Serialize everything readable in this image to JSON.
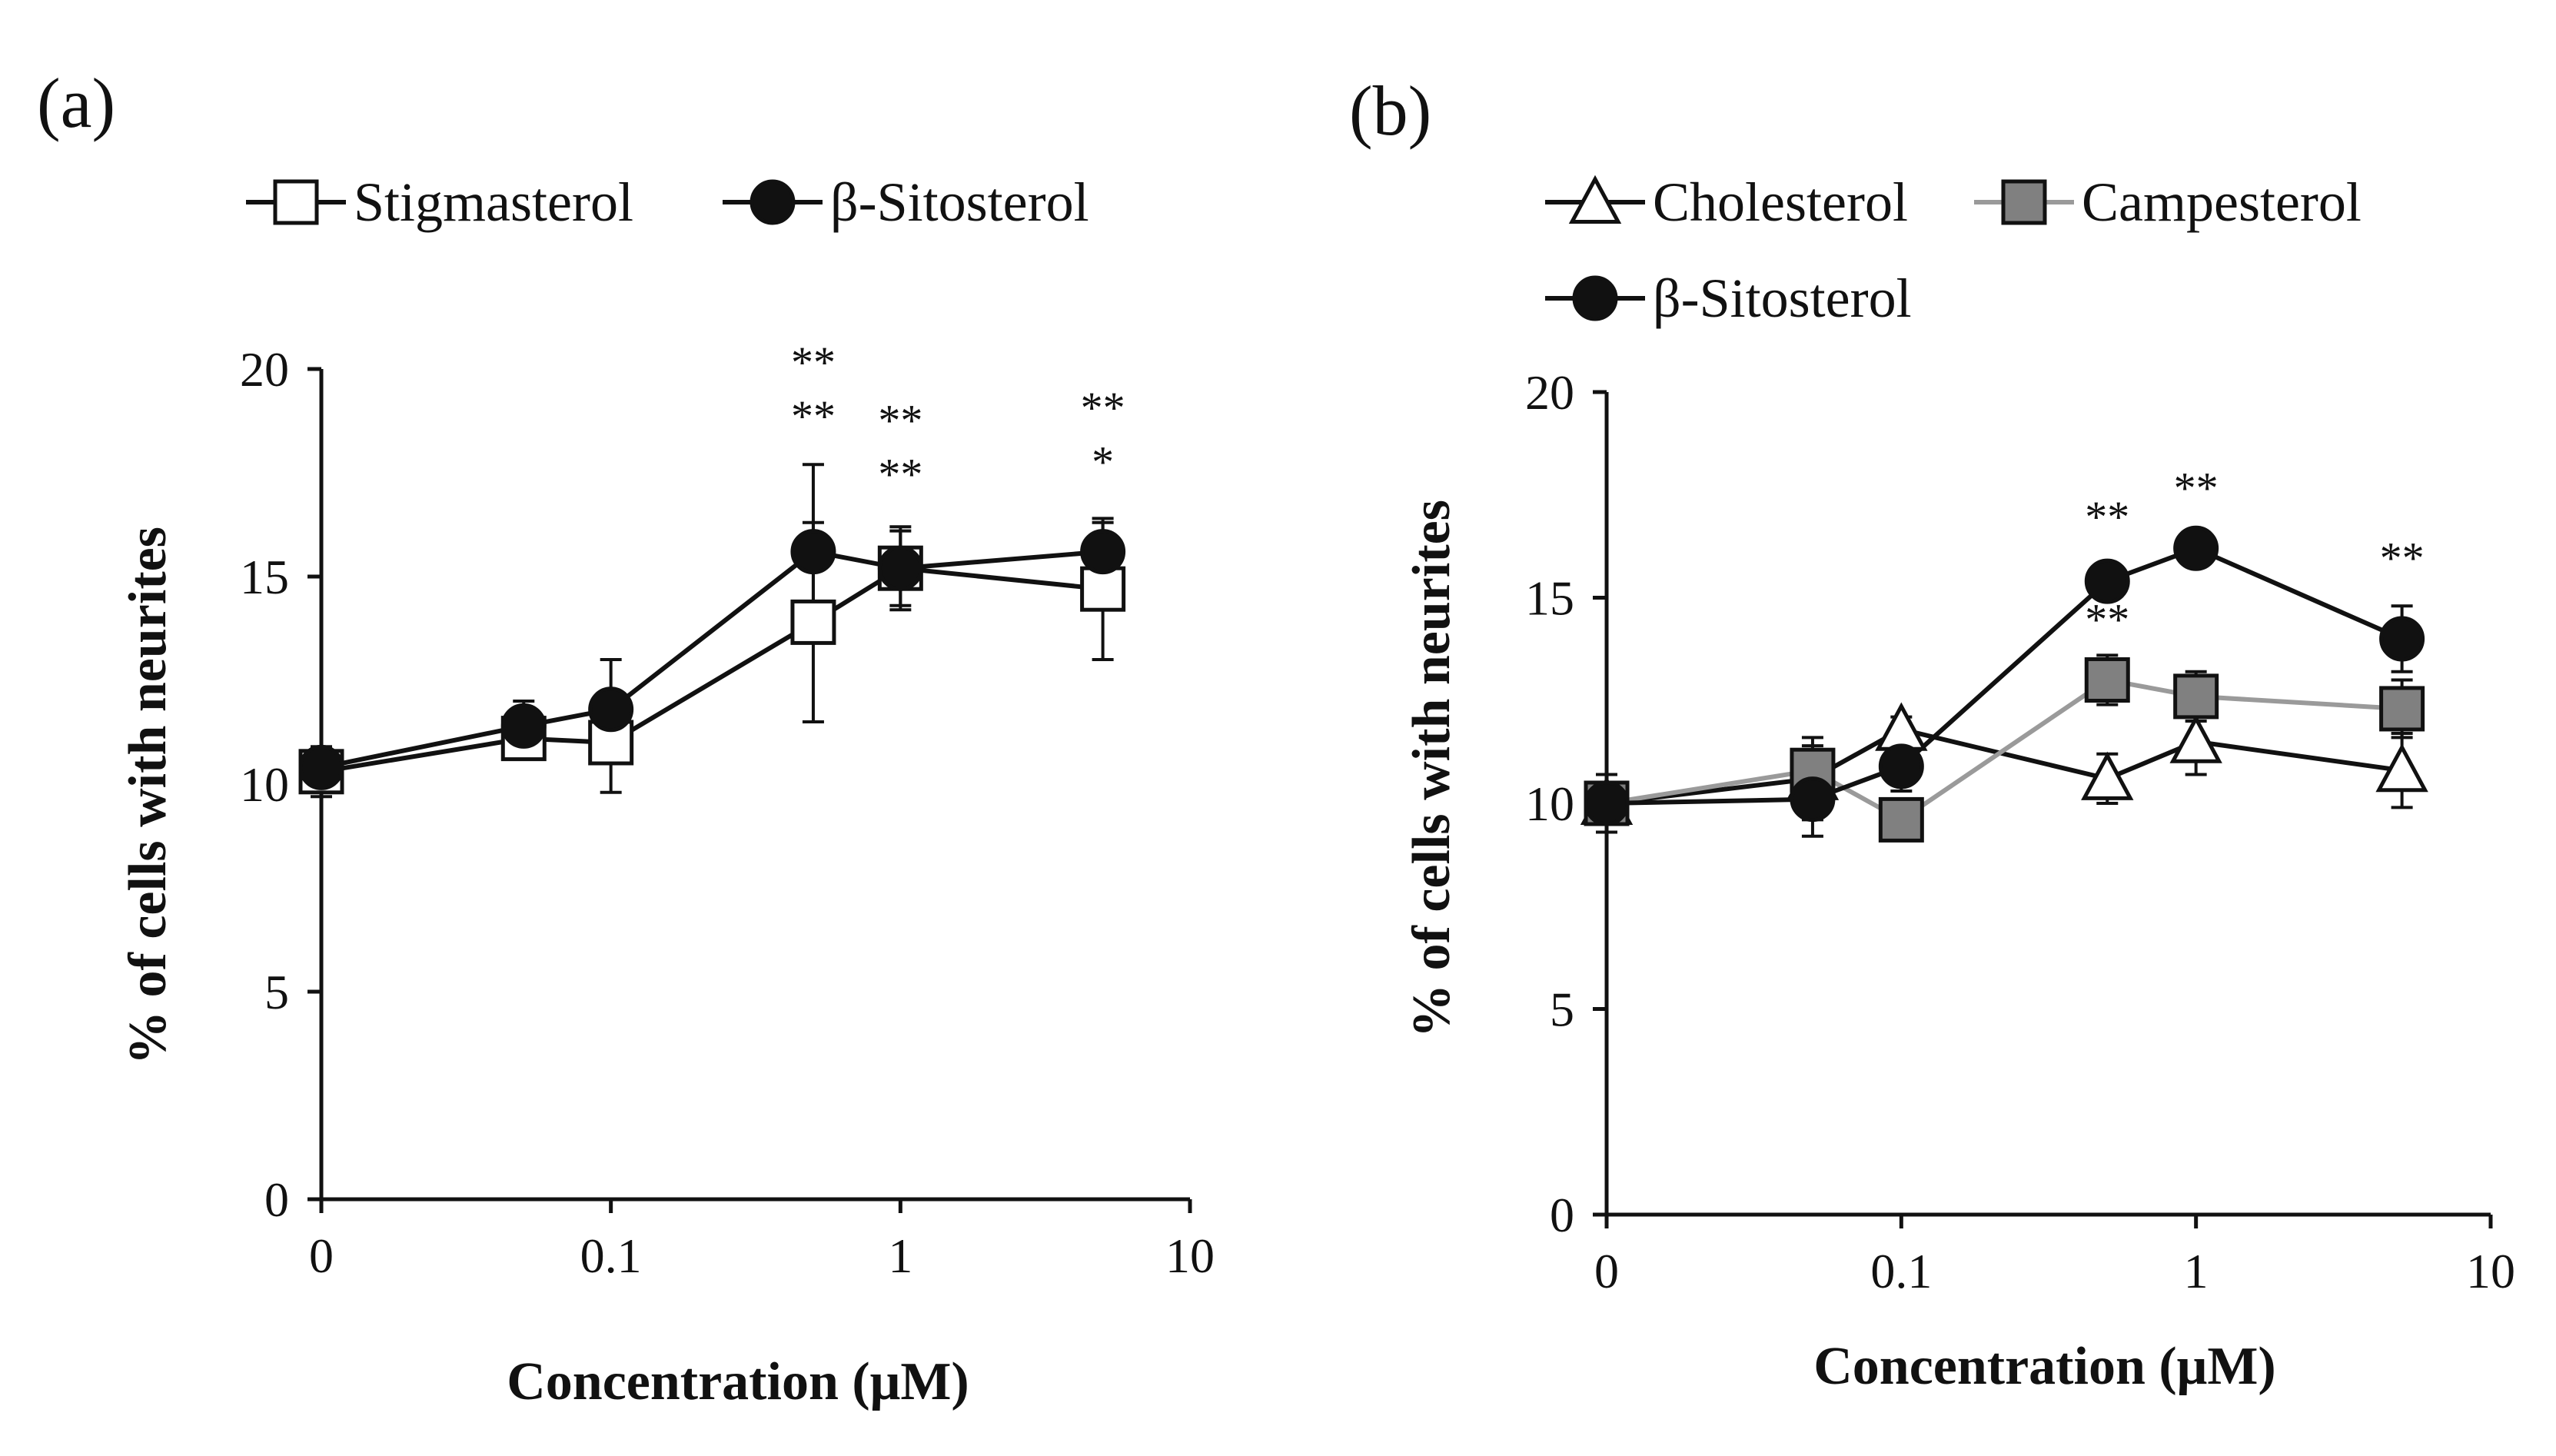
{
  "colors": {
    "black": "#111111",
    "white": "#ffffff",
    "campesterol_fill": "#808080",
    "campesterol_line": "#9a9a9a"
  },
  "chart_data": [
    {
      "panel_label": "(a)",
      "type": "line",
      "x_scale": "log-with-zero",
      "x_ticks": [
        0,
        0.1,
        1,
        10
      ],
      "x_tick_labels": [
        "0",
        "0.1",
        "1",
        "10"
      ],
      "y_ticks": [
        0,
        5,
        10,
        15,
        20
      ],
      "y_tick_labels": [
        "0",
        "5",
        "10",
        "15",
        "20"
      ],
      "ylim": [
        0,
        20
      ],
      "xlabel": "Concentration (μM)",
      "ylabel": "% of cells with neurites",
      "legend_position": "top",
      "series": [
        {
          "name": "Stigmasterol",
          "marker": "open-square",
          "line_color": "#111111",
          "fill": "#ffffff",
          "stroke": "#111111",
          "x": [
            0,
            0.05,
            0.1,
            0.5,
            1,
            5
          ],
          "y": [
            10.3,
            11.1,
            11.0,
            13.9,
            15.2,
            14.7
          ],
          "err": [
            0.6,
            0.4,
            1.2,
            2.4,
            0.9,
            1.7
          ]
        },
        {
          "name": "β-Sitosterol",
          "marker": "filled-circle",
          "line_color": "#111111",
          "fill": "#111111",
          "stroke": "#111111",
          "x": [
            0,
            0.05,
            0.1,
            0.5,
            1,
            5
          ],
          "y": [
            10.4,
            11.4,
            11.8,
            15.6,
            15.2,
            15.6
          ],
          "err": [
            0.5,
            0.6,
            1.2,
            2.1,
            1.0,
            0.7
          ]
        }
      ],
      "annotations": [
        {
          "x": 0.5,
          "y": 19.8,
          "text": "**"
        },
        {
          "x": 0.5,
          "y": 18.5,
          "text": "**"
        },
        {
          "x": 1,
          "y": 18.4,
          "text": "**"
        },
        {
          "x": 1,
          "y": 17.1,
          "text": "**"
        },
        {
          "x": 5,
          "y": 18.7,
          "text": "**"
        },
        {
          "x": 5,
          "y": 17.4,
          "text": "*"
        }
      ]
    },
    {
      "panel_label": "(b)",
      "type": "line",
      "x_scale": "log-with-zero",
      "x_ticks": [
        0,
        0.1,
        1,
        10
      ],
      "x_tick_labels": [
        "0",
        "0.1",
        "1",
        "10"
      ],
      "y_ticks": [
        0,
        5,
        10,
        15,
        20
      ],
      "y_tick_labels": [
        "0",
        "5",
        "10",
        "15",
        "20"
      ],
      "ylim": [
        0,
        20
      ],
      "xlabel": "Concentration (μM)",
      "ylabel": "% of cells with neurites",
      "legend_position": "top",
      "series": [
        {
          "name": "Cholesterol",
          "marker": "open-triangle",
          "line_color": "#111111",
          "fill": "#ffffff",
          "stroke": "#111111",
          "x": [
            0,
            0.05,
            0.1,
            0.5,
            1,
            5
          ],
          "y": [
            10.0,
            10.6,
            11.8,
            10.6,
            11.5,
            10.8
          ],
          "err": [
            0.4,
            1.0,
            0.3,
            0.6,
            0.8,
            0.9
          ]
        },
        {
          "name": "Campesterol",
          "marker": "gray-square",
          "line_color": "#9a9a9a",
          "fill": "#808080",
          "stroke": "#111111",
          "x": [
            0,
            0.05,
            0.1,
            0.5,
            1,
            5
          ],
          "y": [
            10.0,
            10.8,
            9.6,
            13.0,
            12.6,
            12.3
          ],
          "err": [
            0.5,
            0.6,
            0.4,
            0.6,
            0.6,
            0.7
          ]
        },
        {
          "name": "β-Sitosterol",
          "marker": "filled-circle",
          "line_color": "#111111",
          "fill": "#111111",
          "stroke": "#111111",
          "x": [
            0,
            0.05,
            0.1,
            0.5,
            1,
            5
          ],
          "y": [
            10.0,
            10.1,
            10.9,
            15.4,
            16.2,
            14.0
          ],
          "err": [
            0.7,
            0.9,
            0.6,
            0.4,
            0.4,
            0.8
          ]
        }
      ],
      "annotations": [
        {
          "x": 0.5,
          "y": 16.6,
          "text": "**"
        },
        {
          "x": 0.5,
          "y": 14.1,
          "text": "**"
        },
        {
          "x": 1,
          "y": 17.3,
          "text": "**"
        },
        {
          "x": 5,
          "y": 15.6,
          "text": "**"
        }
      ]
    }
  ]
}
